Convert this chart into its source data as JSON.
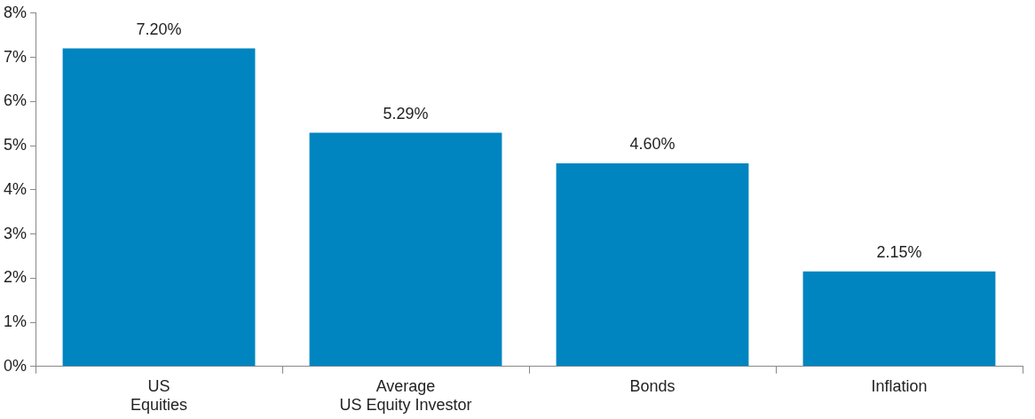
{
  "chart_data": {
    "type": "bar",
    "categories": [
      "US\nEquities",
      "Average\nUS Equity Investor",
      "Bonds",
      "Inflation"
    ],
    "values": [
      7.2,
      5.29,
      4.6,
      2.15
    ],
    "value_labels": [
      "7.20%",
      "5.29%",
      "4.60%",
      "2.15%"
    ],
    "color": "#0085c0",
    "ylim": [
      0,
      8
    ],
    "yticks": [
      {
        "value": 0,
        "label": "0%"
      },
      {
        "value": 1,
        "label": "1%"
      },
      {
        "value": 2,
        "label": "2%"
      },
      {
        "value": 3,
        "label": "3%"
      },
      {
        "value": 4,
        "label": "4%"
      },
      {
        "value": 5,
        "label": "5%"
      },
      {
        "value": 6,
        "label": "6%"
      },
      {
        "value": 7,
        "label": "7%"
      },
      {
        "value": 8,
        "label": "8%"
      }
    ],
    "grid": false,
    "legend": false
  }
}
